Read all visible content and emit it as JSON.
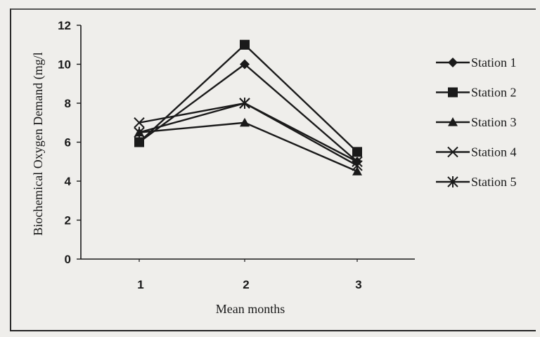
{
  "chart_data": {
    "type": "line",
    "title": "",
    "xlabel": "Mean months",
    "ylabel": "Biochemical Oxygen Demand (mg/l",
    "x": [
      1,
      2,
      3
    ],
    "xticks": [
      "1",
      "2",
      "3"
    ],
    "ylim": [
      0,
      12
    ],
    "yticks": [
      "0",
      "2",
      "4",
      "6",
      "8",
      "10",
      "12"
    ],
    "grid": false,
    "legend_position": "right",
    "series": [
      {
        "name": "Station 1",
        "marker": "diamond",
        "values": [
          6.0,
          10.0,
          5.0
        ]
      },
      {
        "name": "Station 2",
        "marker": "square",
        "values": [
          6.0,
          11.0,
          5.5
        ]
      },
      {
        "name": "Station 3",
        "marker": "triangle",
        "values": [
          6.5,
          7.0,
          4.5
        ]
      },
      {
        "name": "Station 4",
        "marker": "x",
        "values": [
          7.0,
          8.0,
          5.0
        ]
      },
      {
        "name": "Station 5",
        "marker": "star",
        "values": [
          6.5,
          8.0,
          4.8
        ]
      }
    ],
    "line_color": "#1a1a1a"
  }
}
